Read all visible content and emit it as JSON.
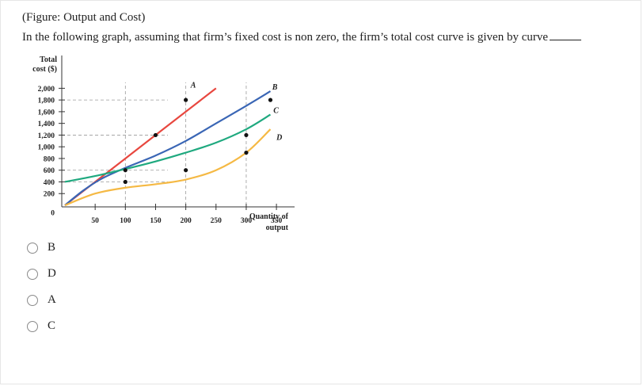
{
  "question": {
    "heading": "(Figure: Output and Cost)",
    "text": "In the following graph, assuming that firm’s fixed cost is non zero, the firm’s total cost curve is given by curve"
  },
  "options": [
    {
      "label": "B",
      "selected": false
    },
    {
      "label": "D",
      "selected": false
    },
    {
      "label": "A",
      "selected": false
    },
    {
      "label": "C",
      "selected": false
    }
  ],
  "chart_data": {
    "type": "line",
    "ylabel": [
      "Total",
      "cost ($)"
    ],
    "xlabel": [
      "Quantity of",
      "output"
    ],
    "x_ticks": [
      50,
      100,
      150,
      200,
      250,
      300,
      350
    ],
    "y_ticks": [
      "0",
      "200",
      "400",
      "600",
      "800",
      "1,000",
      "1,200",
      "1,400",
      "1,600",
      "1,800",
      "2,000"
    ],
    "y_tick_values": [
      0,
      200,
      400,
      600,
      800,
      1000,
      1200,
      1400,
      1600,
      1800,
      2000
    ],
    "xlim": [
      0,
      380
    ],
    "ylim": [
      0,
      2100
    ],
    "grid": "dashed reference lines",
    "series": [
      {
        "name": "A",
        "color": "#e8473f",
        "x": [
          0,
          50,
          100,
          150,
          200,
          250
        ],
        "y": [
          0,
          400,
          800,
          1200,
          1600,
          2000
        ]
      },
      {
        "name": "B",
        "color": "#3a66b5",
        "x": [
          0,
          30,
          60,
          100,
          150,
          200,
          250,
          300,
          340
        ],
        "y": [
          0,
          250,
          450,
          640,
          850,
          1100,
          1400,
          1700,
          1950
        ]
      },
      {
        "name": "C",
        "color": "#1fa97f",
        "x": [
          0,
          50,
          100,
          150,
          200,
          250,
          300,
          340
        ],
        "y": [
          400,
          500,
          620,
          750,
          900,
          1070,
          1300,
          1550
        ]
      },
      {
        "name": "D",
        "color": "#f5b944",
        "x": [
          0,
          50,
          100,
          150,
          200,
          250,
          300,
          340
        ],
        "y": [
          0,
          200,
          300,
          360,
          440,
          600,
          900,
          1300
        ]
      }
    ],
    "reference_lines": {
      "horizontal": [
        400,
        600,
        1200,
        1800
      ],
      "vertical": [
        100,
        200,
        300
      ]
    },
    "markers": [
      {
        "x": 100,
        "y": 400
      },
      {
        "x": 100,
        "y": 600
      },
      {
        "x": 150,
        "y": 1200
      },
      {
        "x": 200,
        "y": 1800
      },
      {
        "x": 200,
        "y": 600
      },
      {
        "x": 300,
        "y": 1200
      },
      {
        "x": 300,
        "y": 900
      },
      {
        "x": 340,
        "y": 1800
      }
    ],
    "curve_labels": [
      {
        "text": "A",
        "x": 208,
        "y": 2010
      },
      {
        "text": "B",
        "x": 343,
        "y": 1980
      },
      {
        "text": "C",
        "x": 345,
        "y": 1580
      },
      {
        "text": "D",
        "x": 350,
        "y": 1120
      }
    ]
  }
}
